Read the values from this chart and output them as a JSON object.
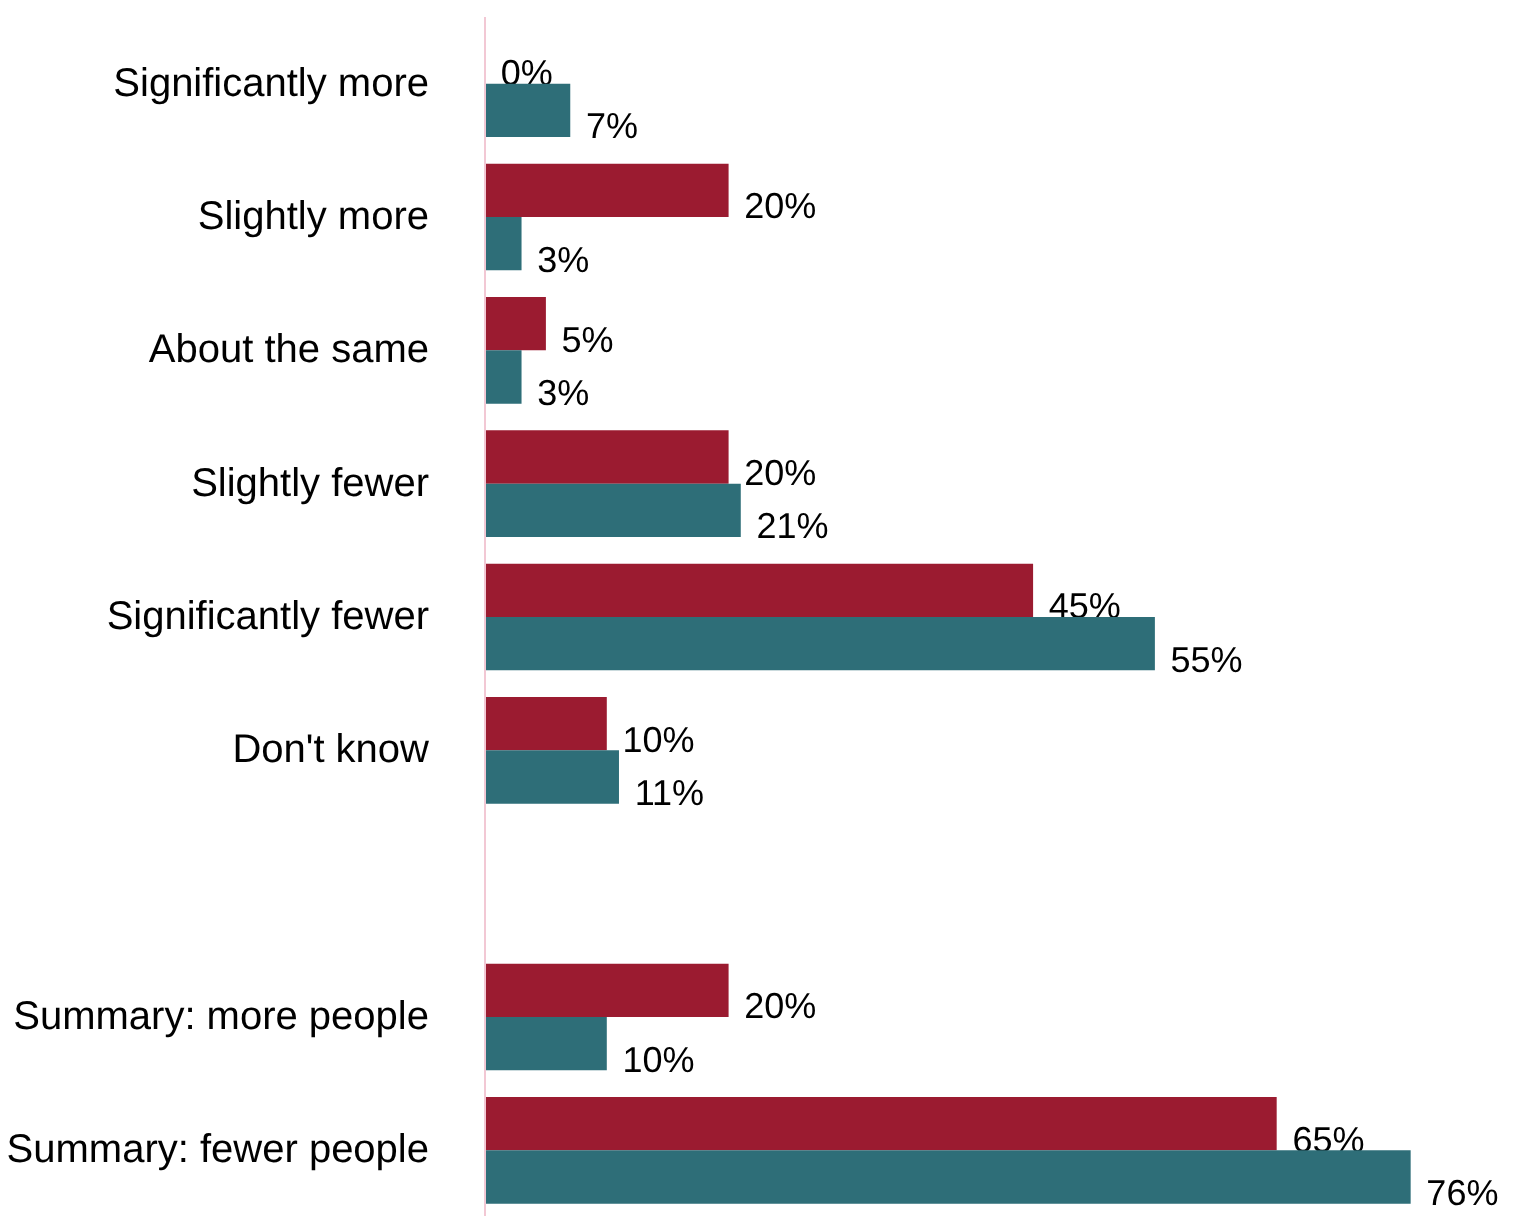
{
  "chart_data": {
    "type": "bar",
    "orientation": "horizontal",
    "tick_labels": "y",
    "categories": [
      "Significantly more",
      "Slightly more",
      "About the same",
      "Slightly fewer",
      "Significantly fewer",
      "Don't know",
      null,
      "Summary: more people",
      "Summary: fewer people"
    ],
    "series": [
      {
        "color": "#9b1b30",
        "values": [
          0,
          20,
          5,
          20,
          45,
          10,
          null,
          20,
          65
        ],
        "value_labels": [
          "0%",
          "20%",
          "5%",
          "20%",
          "45%",
          "10%",
          null,
          "20%",
          "65%"
        ]
      },
      {
        "color": "#2e6e78",
        "values": [
          7,
          3,
          3,
          21,
          55,
          11,
          null,
          10,
          76
        ],
        "value_labels": [
          "7%",
          "3%",
          "3%",
          "21%",
          "55%",
          "11%",
          null,
          "10%",
          "76%"
        ]
      }
    ]
  }
}
